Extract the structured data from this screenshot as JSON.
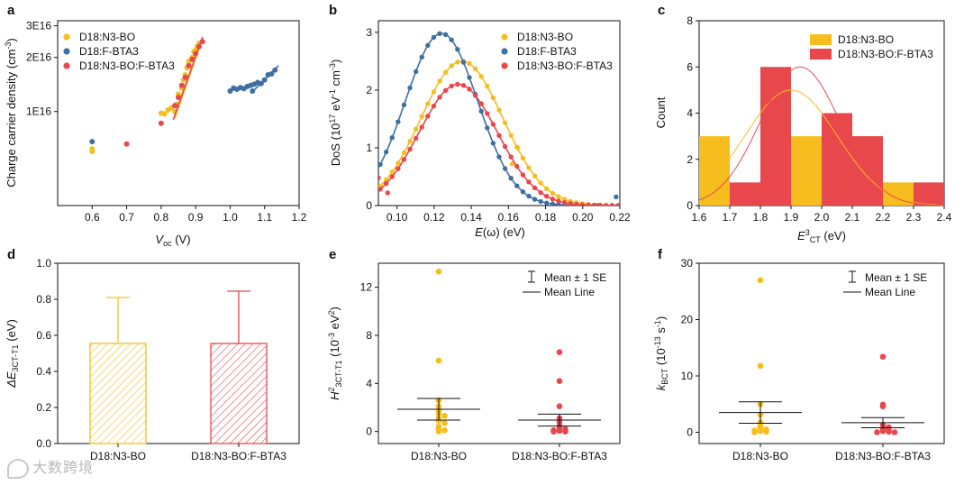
{
  "colors": {
    "n3bo": "#F5BE1E",
    "fbta3": "#3E6FA3",
    "blend": "#E8474C",
    "axis": "#111111",
    "errbar": "#111111"
  },
  "watermark": {
    "text": "大数跨境",
    "icon": "camera-logo-icon"
  },
  "chart_data": [
    {
      "panel": "a",
      "type": "scatter",
      "xlabel": "V",
      "xlabel_sub": "oc",
      "xlabel_unit": " (V)",
      "ylabel": "Charge carrier density (cm",
      "ylabel_sup": "-3",
      "ylabel_end": ")",
      "yscale": "log",
      "xlim": [
        0.5,
        1.2
      ],
      "ylim": [
        3000000000000000.0,
        3.2e+16
      ],
      "xticks": [
        "0.6",
        "0.7",
        "0.8",
        "0.9",
        "1.0",
        "1.1",
        "1.2"
      ],
      "xtick_values": [
        0.6,
        0.7,
        0.8,
        0.9,
        1.0,
        1.1,
        1.2
      ],
      "yticks": [
        "1E16",
        "2E16",
        "3E16"
      ],
      "ytick_values": [
        1e+16,
        2e+16,
        3e+16
      ],
      "legend": [
        "D18:N3-BO",
        "D18:F-BTA3",
        "D18:N3-BO:F-BTA3"
      ],
      "legend_position": "top-left",
      "series": [
        {
          "name": "D18:N3-BO",
          "color_key": "n3bo",
          "points": [
            [
              0.6,
              6200000000000000.0
            ],
            [
              0.6,
              6000000000000000.0
            ],
            [
              0.8,
              9800000000000000.0
            ],
            [
              0.81,
              9700000000000000.0
            ],
            [
              0.82,
              1.02e+16
            ],
            [
              0.83,
              1.05e+16
            ],
            [
              0.84,
              1e+16
            ],
            [
              0.845,
              1.1e+16
            ],
            [
              0.85,
              1.25e+16
            ],
            [
              0.86,
              1.35e+16
            ],
            [
              0.865,
              1.5e+16
            ],
            [
              0.87,
              1.6e+16
            ],
            [
              0.875,
              1.75e+16
            ],
            [
              0.88,
              1.9e+16
            ],
            [
              0.89,
              2e+16
            ],
            [
              0.895,
              2.15e+16
            ],
            [
              0.9,
              2.2e+16
            ],
            [
              0.905,
              2.3e+16
            ],
            [
              0.91,
              2.4e+16
            ]
          ],
          "fit": [
            [
              0.84,
              9200000000000000.0
            ],
            [
              0.92,
              2.55e+16
            ]
          ]
        },
        {
          "name": "D18:F-BTA3",
          "color_key": "fbta3",
          "points": [
            [
              0.6,
              6800000000000000.0
            ],
            [
              1.0,
              1.3e+16
            ],
            [
              1.01,
              1.35e+16
            ],
            [
              1.02,
              1.33e+16
            ],
            [
              1.03,
              1.36e+16
            ],
            [
              1.04,
              1.34e+16
            ],
            [
              1.05,
              1.38e+16
            ],
            [
              1.06,
              1.4e+16
            ],
            [
              1.065,
              1.3e+16
            ],
            [
              1.07,
              1.42e+16
            ],
            [
              1.08,
              1.45e+16
            ],
            [
              1.09,
              1.43e+16
            ],
            [
              1.1,
              1.5e+16
            ],
            [
              1.11,
              1.6e+16
            ],
            [
              1.12,
              1.62e+16
            ],
            [
              1.13,
              1.7e+16
            ]
          ],
          "fit": [
            [
              1.06,
              1.26e+16
            ],
            [
              1.14,
              1.8e+16
            ]
          ]
        },
        {
          "name": "D18:N3-BO:F-BTA3",
          "color_key": "blend",
          "points": [
            [
              0.7,
              6600000000000000.0
            ],
            [
              0.8,
              8600000000000000.0
            ],
            [
              0.84,
              1.08e+16
            ],
            [
              0.85,
              1.2e+16
            ],
            [
              0.86,
              1.4e+16
            ],
            [
              0.87,
              1.55e+16
            ],
            [
              0.88,
              1.8e+16
            ],
            [
              0.89,
              1.95e+16
            ],
            [
              0.9,
              2.1e+16
            ],
            [
              0.91,
              2.3e+16
            ],
            [
              0.92,
              2.45e+16
            ]
          ],
          "fit": [
            [
              0.835,
              9000000000000000.0
            ],
            [
              0.92,
              2.6e+16
            ]
          ]
        }
      ]
    },
    {
      "panel": "b",
      "type": "scatter",
      "xlabel": "E(ω) (eV)",
      "ylabel": "DoS (10",
      "ylabel_sup": "17",
      "ylabel_mid": " eV",
      "ylabel_sup2": "-1",
      "ylabel_mid2": " cm",
      "ylabel_sup3": "-3",
      "ylabel_end": ")",
      "xlim": [
        0.09,
        0.22
      ],
      "ylim": [
        0,
        3.2
      ],
      "xticks": [
        "0.10",
        "0.12",
        "0.14",
        "0.16",
        "0.18",
        "0.20",
        "0.22"
      ],
      "xtick_values": [
        0.1,
        0.12,
        0.14,
        0.16,
        0.18,
        0.2,
        0.22
      ],
      "yticks": [
        "0",
        "1",
        "2",
        "3"
      ],
      "ytick_values": [
        0,
        1,
        2,
        3
      ],
      "legend": [
        "D18:N3-BO",
        "D18:F-BTA3",
        "D18:N3-BO:F-BTA3"
      ],
      "legend_position": "top-right",
      "series": [
        {
          "name": "D18:N3-BO",
          "color_key": "n3bo",
          "gauss": {
            "amp": 2.5,
            "mu": 0.135,
            "sigma": 0.022
          },
          "extra": [
            [
              0.162,
              0.72
            ],
            [
              0.165,
              1.0
            ],
            [
              0.09,
              0.3
            ]
          ]
        },
        {
          "name": "D18:F-BTA3",
          "color_key": "fbta3",
          "gauss": {
            "amp": 2.98,
            "mu": 0.124,
            "sigma": 0.0195
          },
          "extra": [
            [
              0.218,
              0.15
            ],
            [
              0.222,
              0.16
            ],
            [
              0.208,
              0.0
            ]
          ]
        },
        {
          "name": "D18:N3-BO:F-BTA3",
          "color_key": "blend",
          "gauss": {
            "amp": 2.1,
            "mu": 0.133,
            "sigma": 0.021
          },
          "extra": [
            [
              0.095,
              0.22
            ],
            [
              0.09,
              0.48
            ]
          ]
        }
      ]
    },
    {
      "panel": "c",
      "type": "bar",
      "xlabel": "E",
      "xlabel_sup": "3",
      "xlabel_sub": "CT",
      "xlabel_unit": " (eV)",
      "ylabel": "Count",
      "xlim": [
        1.6,
        2.4
      ],
      "ylim": [
        0,
        8
      ],
      "xticks": [
        "1.6",
        "1.7",
        "1.8",
        "1.9",
        "2.0",
        "2.1",
        "2.2",
        "2.3",
        "2.4"
      ],
      "xtick_values": [
        1.6,
        1.7,
        1.8,
        1.9,
        2.0,
        2.1,
        2.2,
        2.3,
        2.4
      ],
      "yticks": [
        "0",
        "2",
        "4",
        "6",
        "8"
      ],
      "ytick_values": [
        0,
        2,
        4,
        6,
        8
      ],
      "legend": [
        "D18:N3-BO",
        "D18:N3-BO:F-BTA3"
      ],
      "legend_position": "top-right",
      "series": [
        {
          "name": "D18:N3-BO",
          "color_key": "n3bo",
          "bins": [
            [
              1.6,
              1.7,
              3
            ],
            [
              1.8,
              1.9,
              5
            ],
            [
              1.9,
              2.0,
              3
            ],
            [
              2.1,
              2.2,
              3
            ],
            [
              2.2,
              2.3,
              1
            ]
          ],
          "gauss": {
            "amp": 5.0,
            "mu": 1.9,
            "sigma": 0.15
          }
        },
        {
          "name": "D18:N3-BO:F-BTA3",
          "color_key": "blend",
          "bins": [
            [
              1.7,
              1.8,
              1
            ],
            [
              1.8,
              1.9,
              6
            ],
            [
              2.0,
              2.1,
              4
            ],
            [
              2.1,
              2.2,
              3
            ],
            [
              2.3,
              2.4,
              1
            ]
          ],
          "gauss": {
            "amp": 6.0,
            "mu": 1.93,
            "sigma": 0.13
          }
        }
      ]
    },
    {
      "panel": "d",
      "type": "bar",
      "ylabel": "ΔE",
      "ylabel_sub": "3CT-T1",
      "ylabel_unit": " (eV)",
      "categories": [
        "D18:N3-BO",
        "D18:N3-BO:F-BTA3"
      ],
      "values": [
        0.555,
        0.555
      ],
      "errors": [
        0.255,
        0.29
      ],
      "ylim": [
        0,
        1.0
      ],
      "yticks": [
        "0.0",
        "0.2",
        "0.4",
        "0.6",
        "0.8",
        "1.0"
      ],
      "ytick_values": [
        0,
        0.2,
        0.4,
        0.6,
        0.8,
        1.0
      ],
      "color_keys": [
        "n3bo",
        "blend"
      ]
    },
    {
      "panel": "e",
      "type": "scatter",
      "ylabel": "H",
      "ylabel_sup": "2",
      "ylabel_sub": "3CT-T1",
      "ylabel_unit": " (10",
      "ylabel_sup2": "-3",
      "ylabel_mid": " eV",
      "ylabel_sup3": "2",
      "ylabel_end": ")",
      "categories": [
        "D18:N3-BO",
        "D18:N3-BO:F-BTA3"
      ],
      "ylim": [
        -1.0,
        14.0
      ],
      "yticks": [
        "0",
        "4",
        "8",
        "12"
      ],
      "ytick_values": [
        0,
        4,
        8,
        12
      ],
      "legend": [
        "Mean ± 1 SE",
        "Mean Line"
      ],
      "legend_position": "top-right",
      "groups": [
        {
          "color_key": "n3bo",
          "mean": 1.85,
          "se_low": 0.95,
          "se_high": 2.75,
          "points": [
            13.3,
            5.9,
            2.6,
            2.1,
            1.8,
            1.5,
            1.3,
            1.1,
            0.9,
            0.7,
            0.4,
            0.2,
            0.1,
            0.0
          ]
        },
        {
          "color_key": "blend",
          "mean": 0.95,
          "se_low": 0.45,
          "se_high": 1.45,
          "points": [
            6.6,
            4.2,
            2.1,
            1.1,
            0.8,
            0.5,
            0.3,
            0.2,
            0.1,
            0.05,
            0.0,
            0.0
          ]
        }
      ]
    },
    {
      "panel": "f",
      "type": "scatter",
      "ylabel": "k",
      "ylabel_sub": "BCT",
      "ylabel_unit": " (10",
      "ylabel_sup": "-13",
      "ylabel_mid": " s",
      "ylabel_sup2": "-1",
      "ylabel_end": ")",
      "categories": [
        "D18:N3-BO",
        "D18:N3-BO:F-BTA3"
      ],
      "ylim": [
        -2.0,
        30.0
      ],
      "yticks": [
        "0",
        "10",
        "20",
        "30"
      ],
      "ytick_values": [
        0,
        10,
        20,
        30
      ],
      "legend": [
        "Mean ± 1 SE",
        "Mean Line"
      ],
      "legend_position": "top-right",
      "groups": [
        {
          "color_key": "n3bo",
          "mean": 3.5,
          "se_low": 1.6,
          "se_high": 5.4,
          "points": [
            27.0,
            11.8,
            5.0,
            3.1,
            1.8,
            1.2,
            0.8,
            0.5,
            0.3,
            0.2,
            0.1,
            0.0
          ]
        },
        {
          "color_key": "blend",
          "mean": 1.7,
          "se_low": 0.8,
          "se_high": 2.6,
          "points": [
            13.4,
            4.9,
            4.6,
            1.3,
            0.9,
            0.6,
            0.4,
            0.2,
            0.1,
            0.0,
            0.0
          ]
        }
      ]
    }
  ]
}
